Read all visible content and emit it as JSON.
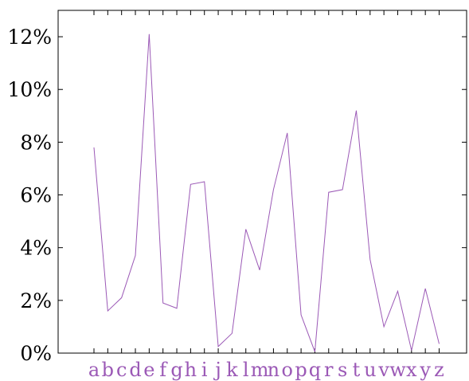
{
  "chart_data": {
    "type": "line",
    "categories": [
      "a",
      "b",
      "c",
      "d",
      "e",
      "f",
      "g",
      "h",
      "i",
      "j",
      "k",
      "l",
      "m",
      "n",
      "o",
      "p",
      "q",
      "r",
      "s",
      "t",
      "u",
      "v",
      "w",
      "x",
      "y",
      "z"
    ],
    "series": [
      {
        "values": [
          7.8,
          1.6,
          2.1,
          3.7,
          12.1,
          1.9,
          1.7,
          6.4,
          6.5,
          0.25,
          0.75,
          4.7,
          3.15,
          6.2,
          8.35,
          1.45,
          0.05,
          6.1,
          6.2,
          9.2,
          3.55,
          1.0,
          2.35,
          0.1,
          2.45,
          0.35
        ]
      }
    ],
    "y_ticks": [
      0,
      2,
      4,
      6,
      8,
      10,
      12
    ],
    "y_tick_labels": [
      "0%",
      "2%",
      "4%",
      "6%",
      "8%",
      "10%",
      "12%"
    ],
    "ylim": [
      0,
      13
    ],
    "grid": false,
    "colors": {
      "line": "#9b59b6",
      "x_labels": "#9b59b6",
      "axes": "#000000"
    }
  }
}
